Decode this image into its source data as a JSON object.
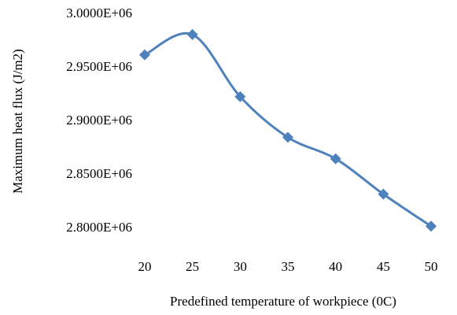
{
  "chart_data": {
    "type": "line",
    "x_label": "Predefined temperature of workpiece (0C)",
    "y_label": "Maximum heat flux (J/m2)",
    "x": [
      20,
      25,
      30,
      35,
      40,
      45,
      50
    ],
    "series": [
      {
        "color": "#4f81bd",
        "values": [
          2962000,
          2981000,
          2923000,
          2885000,
          2865000,
          2832000,
          2802000
        ]
      }
    ],
    "xlim": [
      20,
      50
    ],
    "xticks": [
      20,
      25,
      30,
      35,
      40,
      45,
      50
    ],
    "ylim": [
      2800000,
      3000000
    ],
    "yticks": [
      {
        "value": 2800000,
        "label": "2.8000E+06"
      },
      {
        "value": 2850000,
        "label": "2.8500E+06"
      },
      {
        "value": 2900000,
        "label": "2.9000E+06"
      },
      {
        "value": 2950000,
        "label": "2.9500E+06"
      },
      {
        "value": 3000000,
        "label": "3.0000E+06"
      }
    ],
    "smooth": true
  }
}
